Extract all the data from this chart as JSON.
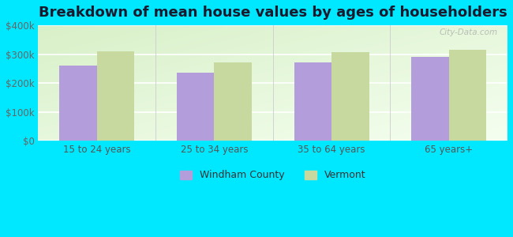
{
  "title": "Breakdown of mean house values by ages of householders",
  "categories": [
    "15 to 24 years",
    "25 to 34 years",
    "35 to 64 years",
    "65 years+"
  ],
  "windham_county": [
    260000,
    235000,
    272000,
    292000
  ],
  "vermont": [
    310000,
    272000,
    307000,
    315000
  ],
  "windham_color": "#b39ddb",
  "vermont_color": "#c8d9a0",
  "background_color": "#00e8ff",
  "ylim": [
    0,
    400000
  ],
  "yticks": [
    0,
    100000,
    200000,
    300000,
    400000
  ],
  "ytick_labels": [
    "$0",
    "$100k",
    "$200k",
    "$300k",
    "$400k"
  ],
  "bar_width": 0.32,
  "legend_labels": [
    "Windham County",
    "Vermont"
  ],
  "watermark": "City-Data.com",
  "title_fontsize": 13,
  "tick_fontsize": 8.5,
  "legend_fontsize": 9
}
